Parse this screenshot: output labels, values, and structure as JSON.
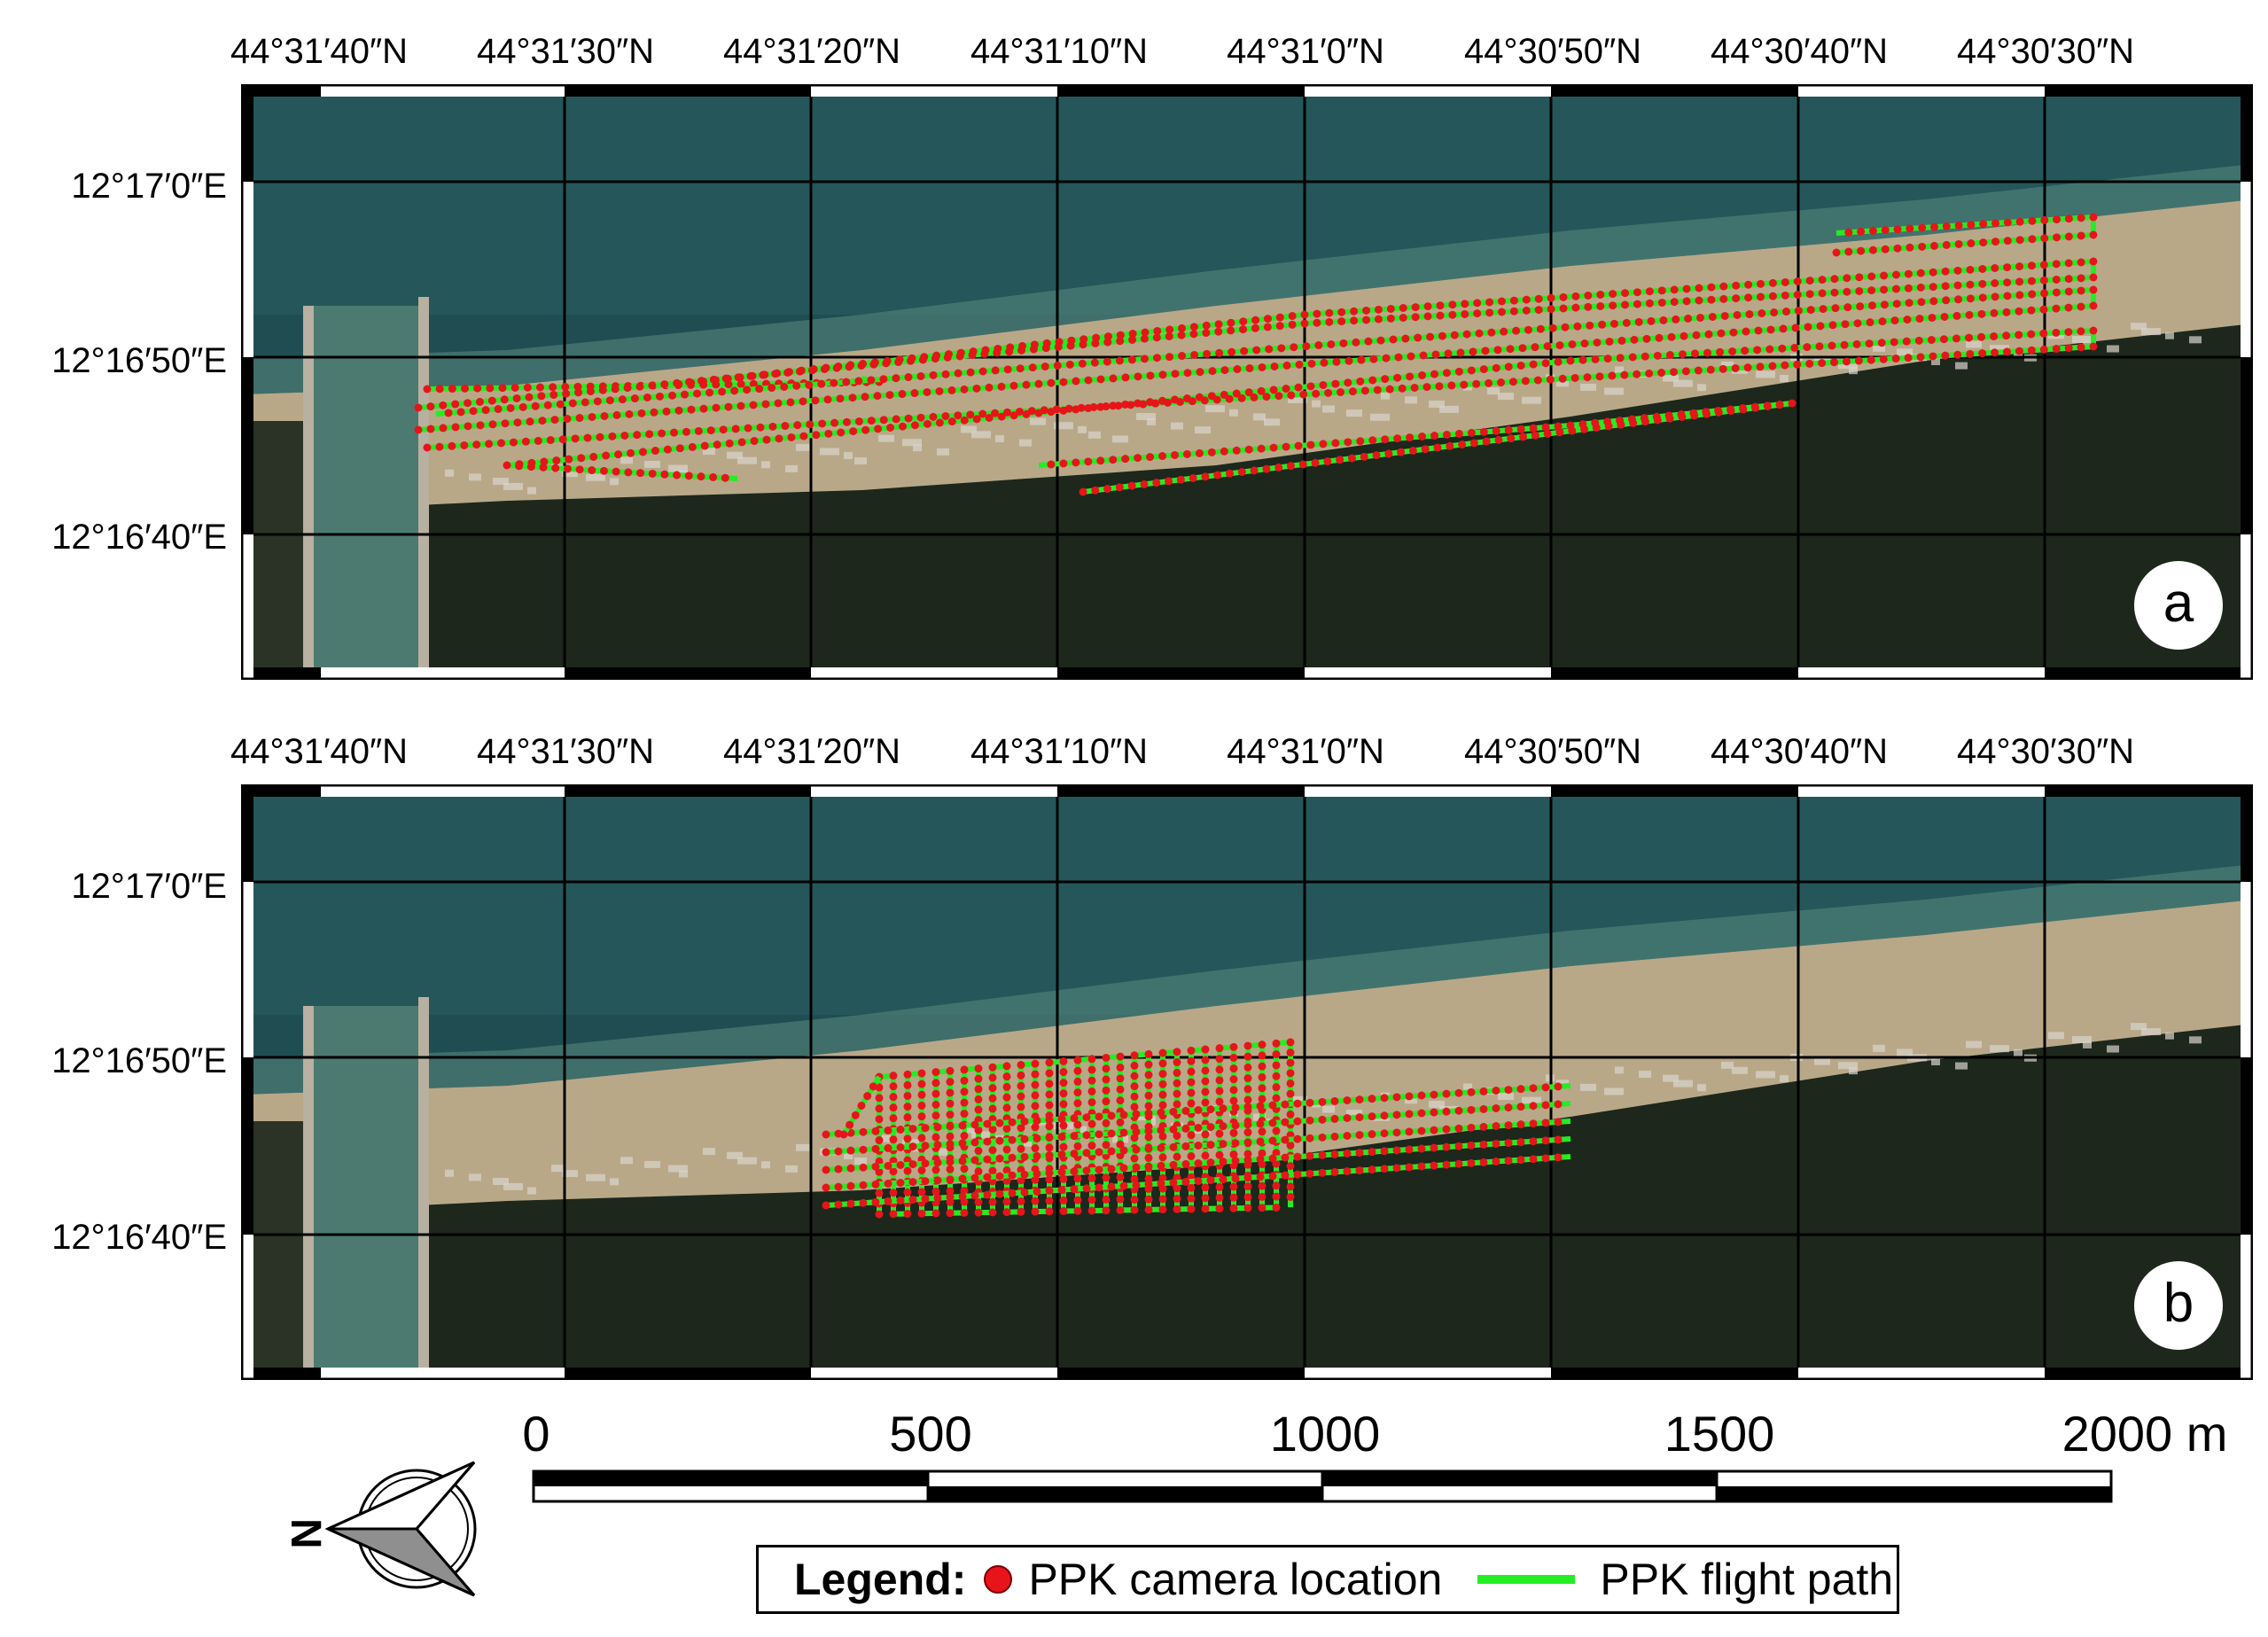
{
  "map": {
    "lat_labels": [
      "44°31′40″N",
      "44°31′30″N",
      "44°31′20″N",
      "44°31′10″N",
      "44°31′0″N",
      "44°30′50″N",
      "44°30′40″N",
      "44°30′30″N"
    ],
    "lon_labels": [
      "12°17′0″E",
      "12°16′50″E",
      "12°16′40″E"
    ],
    "colors": {
      "sea": "#2a5f60",
      "sea_deep": "#1f4d52",
      "beach": "#b9a888",
      "forest": "#1d271c",
      "camera_point": "#e8141b",
      "flight_path": "#22ee22",
      "grid": "#000000"
    }
  },
  "panels": [
    {
      "letter": "a",
      "survey": "along-shore strips"
    },
    {
      "letter": "b",
      "survey": "cross-shore grid"
    }
  ],
  "scale_bar": {
    "labels": [
      "0",
      "500",
      "1000",
      "1500",
      "2000 m"
    ]
  },
  "north_arrow": {
    "letter": "N"
  },
  "legend": {
    "title": "Legend:",
    "camera_label": "PPK camera location",
    "path_label": "PPK flight path"
  }
}
